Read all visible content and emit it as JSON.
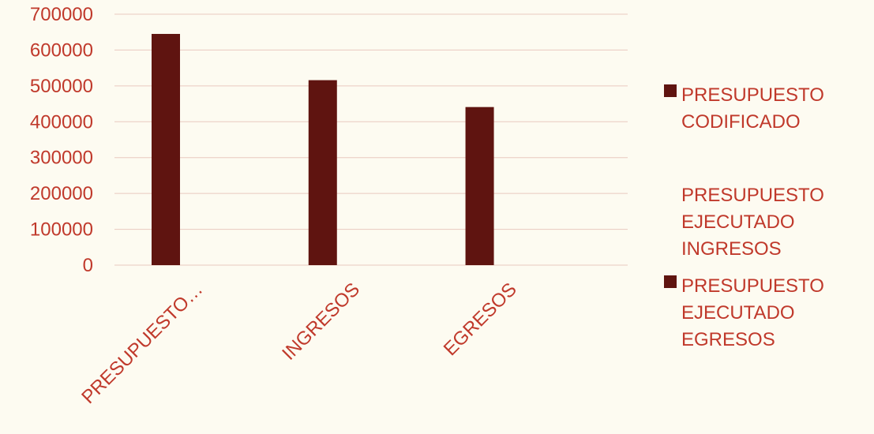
{
  "chart_data": {
    "type": "bar",
    "categories": [
      "PRESUPUESTO…",
      "INGRESOS",
      "EGRESOS"
    ],
    "series": [
      {
        "name": "PRESUPUESTO CODIFICADO",
        "values": [
          645000,
          0,
          0
        ]
      },
      {
        "name": "PRESUPUESTO EJECUTADO INGRESOS",
        "values": [
          0,
          516000,
          0
        ]
      },
      {
        "name": "PRESUPUESTO EJECUTADO EGRESOS",
        "values": [
          0,
          0,
          441000
        ]
      }
    ],
    "legend_lines": [
      [
        "PRESUPUESTO",
        "CODIFICADO"
      ],
      [
        "PRESUPUESTO",
        "EJECUTADO",
        "INGRESOS"
      ],
      [
        "PRESUPUESTO",
        "EJECUTADO",
        "EGRESOS"
      ]
    ],
    "yticks": [
      "0",
      "100000",
      "200000",
      "300000",
      "400000",
      "500000",
      "600000",
      "700000"
    ],
    "ylim": [
      0,
      700000
    ],
    "grid": true,
    "legend_position": "right",
    "colors": {
      "bar": "#5f1410",
      "text": "#c0392b",
      "grid": "#e9c9c0",
      "background": "#fdfbf1"
    }
  }
}
